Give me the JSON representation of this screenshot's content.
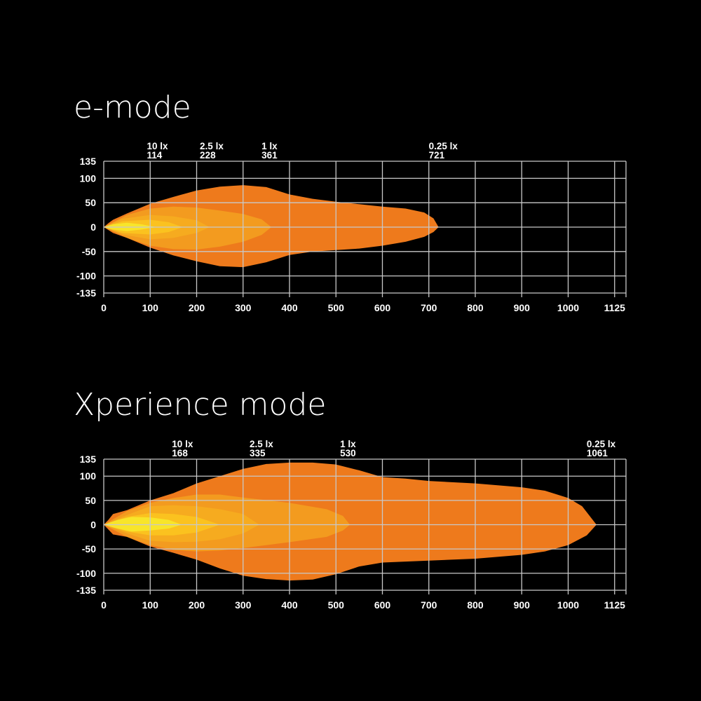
{
  "chart_data": [
    {
      "type": "area",
      "title": "e-mode",
      "x_ticks": [
        0,
        100,
        200,
        300,
        400,
        500,
        600,
        700,
        800,
        900,
        1000,
        1125
      ],
      "y_ticks": [
        135,
        100,
        50,
        0,
        -50,
        -100,
        -135
      ],
      "xlim": [
        0,
        1125
      ],
      "ylim": [
        -135,
        135
      ],
      "grid": true,
      "colors": [
        "#ee7a1c",
        "#f39b1f",
        "#f6ab1f",
        "#fbc21f",
        "#f8e52a"
      ],
      "contour_labels": [
        {
          "label": "10 lx",
          "distance": "114",
          "x": 114
        },
        {
          "label": "2.5 lx",
          "distance": "228",
          "x": 228
        },
        {
          "label": "1 lx",
          "distance": "361",
          "x": 361
        },
        {
          "label": "0.25 lx",
          "distance": "721",
          "x": 721
        }
      ],
      "contours": [
        {
          "level": "0.25 lx",
          "reach": 721,
          "upper": [
            [
              0,
              0
            ],
            [
              10,
              8
            ],
            [
              20,
              15
            ],
            [
              50,
              28
            ],
            [
              100,
              48
            ],
            [
              150,
              62
            ],
            [
              200,
              75
            ],
            [
              250,
              83
            ],
            [
              300,
              86
            ],
            [
              350,
              82
            ],
            [
              400,
              67
            ],
            [
              450,
              58
            ],
            [
              500,
              52
            ],
            [
              550,
              47
            ],
            [
              600,
              42
            ],
            [
              650,
              38
            ],
            [
              690,
              30
            ],
            [
              710,
              18
            ],
            [
              721,
              0
            ]
          ],
          "lower": [
            [
              0,
              0
            ],
            [
              10,
              -6
            ],
            [
              20,
              -12
            ],
            [
              50,
              -22
            ],
            [
              100,
              -42
            ],
            [
              150,
              -58
            ],
            [
              200,
              -70
            ],
            [
              250,
              -80
            ],
            [
              300,
              -82
            ],
            [
              350,
              -72
            ],
            [
              400,
              -57
            ],
            [
              450,
              -50
            ],
            [
              500,
              -47
            ],
            [
              550,
              -44
            ],
            [
              600,
              -38
            ],
            [
              650,
              -30
            ],
            [
              690,
              -20
            ],
            [
              710,
              -10
            ],
            [
              721,
              0
            ]
          ]
        },
        {
          "level": "1 lx",
          "reach": 361,
          "upper": [
            [
              0,
              0
            ],
            [
              50,
              25
            ],
            [
              100,
              38
            ],
            [
              150,
              42
            ],
            [
              200,
              40
            ],
            [
              250,
              34
            ],
            [
              300,
              27
            ],
            [
              340,
              16
            ],
            [
              361,
              0
            ]
          ],
          "lower": [
            [
              0,
              0
            ],
            [
              50,
              -22
            ],
            [
              100,
              -38
            ],
            [
              150,
              -45
            ],
            [
              200,
              -46
            ],
            [
              250,
              -40
            ],
            [
              300,
              -30
            ],
            [
              340,
              -16
            ],
            [
              361,
              0
            ]
          ]
        },
        {
          "level": "2.5 lx",
          "reach": 228,
          "upper": [
            [
              0,
              0
            ],
            [
              40,
              17
            ],
            [
              100,
              25
            ],
            [
              150,
              22
            ],
            [
              200,
              14
            ],
            [
              228,
              0
            ]
          ],
          "lower": [
            [
              0,
              0
            ],
            [
              40,
              -15
            ],
            [
              100,
              -25
            ],
            [
              150,
              -22
            ],
            [
              200,
              -12
            ],
            [
              228,
              0
            ]
          ]
        },
        {
          "level": "",
          "reach": 170,
          "upper": [
            [
              0,
              0
            ],
            [
              40,
              12
            ],
            [
              100,
              15
            ],
            [
              140,
              10
            ],
            [
              170,
              0
            ]
          ],
          "lower": [
            [
              0,
              0
            ],
            [
              40,
              -12
            ],
            [
              100,
              -15
            ],
            [
              140,
              -10
            ],
            [
              170,
              0
            ]
          ]
        },
        {
          "level": "10 lx",
          "reach": 114,
          "upper": [
            [
              0,
              0
            ],
            [
              20,
              6
            ],
            [
              50,
              9
            ],
            [
              80,
              6
            ],
            [
              114,
              0
            ]
          ],
          "lower": [
            [
              0,
              0
            ],
            [
              20,
              -5
            ],
            [
              50,
              -8
            ],
            [
              80,
              -5
            ],
            [
              114,
              0
            ]
          ]
        }
      ]
    },
    {
      "type": "area",
      "title": "Xperience mode",
      "x_ticks": [
        0,
        100,
        200,
        300,
        400,
        500,
        600,
        700,
        800,
        900,
        1000,
        1125
      ],
      "y_ticks": [
        135,
        100,
        50,
        0,
        -50,
        -100,
        -135
      ],
      "xlim": [
        0,
        1125
      ],
      "ylim": [
        -135,
        135
      ],
      "grid": true,
      "colors": [
        "#ee7a1c",
        "#f39b1f",
        "#f6ab1f",
        "#fbc21f",
        "#f8e52a"
      ],
      "contour_labels": [
        {
          "label": "10 lx",
          "distance": "168",
          "x": 168
        },
        {
          "label": "2.5 lx",
          "distance": "335",
          "x": 335
        },
        {
          "label": "1 lx",
          "distance": "530",
          "x": 530
        },
        {
          "label": "0.25 lx",
          "distance": "1061",
          "x": 1061
        }
      ],
      "contours": [
        {
          "level": "0.25 lx",
          "reach": 1061,
          "upper": [
            [
              0,
              0
            ],
            [
              10,
              10
            ],
            [
              20,
              22
            ],
            [
              50,
              30
            ],
            [
              100,
              50
            ],
            [
              150,
              65
            ],
            [
              200,
              85
            ],
            [
              250,
              100
            ],
            [
              300,
              115
            ],
            [
              350,
              125
            ],
            [
              400,
              128
            ],
            [
              450,
              128
            ],
            [
              500,
              124
            ],
            [
              550,
              112
            ],
            [
              600,
              98
            ],
            [
              650,
              95
            ],
            [
              700,
              90
            ],
            [
              800,
              85
            ],
            [
              900,
              77
            ],
            [
              950,
              70
            ],
            [
              1000,
              55
            ],
            [
              1030,
              38
            ],
            [
              1061,
              0
            ]
          ],
          "lower": [
            [
              0,
              0
            ],
            [
              10,
              -10
            ],
            [
              20,
              -20
            ],
            [
              50,
              -25
            ],
            [
              100,
              -45
            ],
            [
              150,
              -58
            ],
            [
              200,
              -72
            ],
            [
              250,
              -90
            ],
            [
              300,
              -105
            ],
            [
              350,
              -112
            ],
            [
              400,
              -115
            ],
            [
              450,
              -113
            ],
            [
              500,
              -102
            ],
            [
              550,
              -86
            ],
            [
              600,
              -78
            ],
            [
              700,
              -74
            ],
            [
              800,
              -70
            ],
            [
              900,
              -62
            ],
            [
              950,
              -55
            ],
            [
              1000,
              -42
            ],
            [
              1040,
              -22
            ],
            [
              1061,
              0
            ]
          ]
        },
        {
          "level": "1 lx",
          "reach": 530,
          "upper": [
            [
              0,
              0
            ],
            [
              50,
              28
            ],
            [
              100,
              45
            ],
            [
              150,
              55
            ],
            [
              200,
              62
            ],
            [
              250,
              62
            ],
            [
              300,
              56
            ],
            [
              400,
              45
            ],
            [
              480,
              32
            ],
            [
              515,
              18
            ],
            [
              530,
              0
            ]
          ],
          "lower": [
            [
              0,
              0
            ],
            [
              50,
              -25
            ],
            [
              100,
              -42
            ],
            [
              150,
              -52
            ],
            [
              200,
              -55
            ],
            [
              250,
              -53
            ],
            [
              300,
              -48
            ],
            [
              400,
              -36
            ],
            [
              480,
              -25
            ],
            [
              515,
              -12
            ],
            [
              530,
              0
            ]
          ]
        },
        {
          "level": "2.5 lx",
          "reach": 335,
          "upper": [
            [
              0,
              0
            ],
            [
              50,
              20
            ],
            [
              100,
              38
            ],
            [
              150,
              40
            ],
            [
              200,
              38
            ],
            [
              250,
              32
            ],
            [
              300,
              22
            ],
            [
              335,
              0
            ]
          ],
          "lower": [
            [
              0,
              0
            ],
            [
              50,
              -18
            ],
            [
              100,
              -33
            ],
            [
              150,
              -36
            ],
            [
              200,
              -35
            ],
            [
              250,
              -30
            ],
            [
              300,
              -18
            ],
            [
              335,
              0
            ]
          ]
        },
        {
          "level": "",
          "reach": 250,
          "upper": [
            [
              0,
              0
            ],
            [
              50,
              16
            ],
            [
              100,
              24
            ],
            [
              150,
              22
            ],
            [
              200,
              16
            ],
            [
              250,
              0
            ]
          ],
          "lower": [
            [
              0,
              0
            ],
            [
              50,
              -14
            ],
            [
              100,
              -22
            ],
            [
              150,
              -22
            ],
            [
              200,
              -16
            ],
            [
              250,
              0
            ]
          ]
        },
        {
          "level": "10 lx",
          "reach": 168,
          "upper": [
            [
              0,
              0
            ],
            [
              30,
              10
            ],
            [
              60,
              16
            ],
            [
              100,
              15
            ],
            [
              140,
              10
            ],
            [
              168,
              0
            ]
          ],
          "lower": [
            [
              0,
              0
            ],
            [
              30,
              -8
            ],
            [
              60,
              -14
            ],
            [
              100,
              -12
            ],
            [
              140,
              -8
            ],
            [
              168,
              0
            ]
          ]
        }
      ]
    }
  ]
}
